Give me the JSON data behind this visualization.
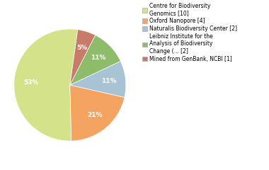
{
  "labels": [
    "Centre for Biodiversity\nGenomics [10]",
    "Oxford Nanopore [4]",
    "Naturalis Biodiversity Center [2]",
    "Leibniz Institute for the\nAnalysis of Biodiversity\nChange (... [2]",
    "Mined from GenBank, NCBI [1]"
  ],
  "values": [
    10,
    4,
    2,
    2,
    1
  ],
  "colors": [
    "#d4e38a",
    "#f4a460",
    "#a8c4d4",
    "#8fbc6a",
    "#c97b6a"
  ],
  "text_color": "white",
  "background_color": "#ffffff",
  "startangle": 82,
  "pctdistance": 0.7,
  "figsize": [
    3.8,
    2.4
  ],
  "dpi": 100,
  "legend_fontsize": 5.5,
  "pct_fontsize": 6.5
}
